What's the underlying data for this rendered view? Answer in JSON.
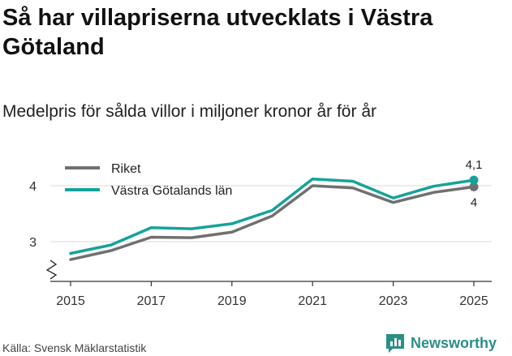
{
  "title": "Så har villapriserna utvecklats i Västra Götaland",
  "subtitle": "Medelpris för sålda villor i miljoner kronor år för år",
  "source": "Källa: Svensk Mäklarstatistik",
  "brand": "Newsworthy",
  "colors": {
    "riket": "#707070",
    "vgl": "#14a39a",
    "grid": "#d9d9d9",
    "axis": "#333333",
    "brand": "#2a8f86"
  },
  "chart_data": {
    "type": "line",
    "title": "Så har villapriserna utvecklats i Västra Götaland",
    "subtitle": "Medelpris för sålda villor i miljoner kronor år för år",
    "xlabel": "",
    "ylabel": "",
    "x": [
      2015,
      2016,
      2017,
      2018,
      2019,
      2020,
      2021,
      2022,
      2023,
      2024,
      2025
    ],
    "x_ticks": [
      2015,
      2017,
      2019,
      2021,
      2023,
      2025
    ],
    "x_tick_labels": [
      "2015",
      "2017",
      "2019",
      "2021",
      "2023",
      "2025"
    ],
    "y_ticks": [
      3,
      4
    ],
    "y_tick_labels": [
      "3",
      "4"
    ],
    "ylim": [
      2.5,
      4.4
    ],
    "xlim": [
      2015,
      2025
    ],
    "grid": true,
    "axis_break": true,
    "legend_position": "top-left",
    "series": [
      {
        "name": "Riket",
        "values": [
          2.68,
          2.84,
          3.08,
          3.07,
          3.17,
          3.46,
          4.0,
          3.96,
          3.7,
          3.88,
          3.98
        ],
        "end_label": "4"
      },
      {
        "name": "Västra Götalands län",
        "values": [
          2.79,
          2.94,
          3.25,
          3.23,
          3.32,
          3.56,
          4.12,
          4.08,
          3.78,
          3.99,
          4.1
        ],
        "end_label": "4,1"
      }
    ]
  }
}
